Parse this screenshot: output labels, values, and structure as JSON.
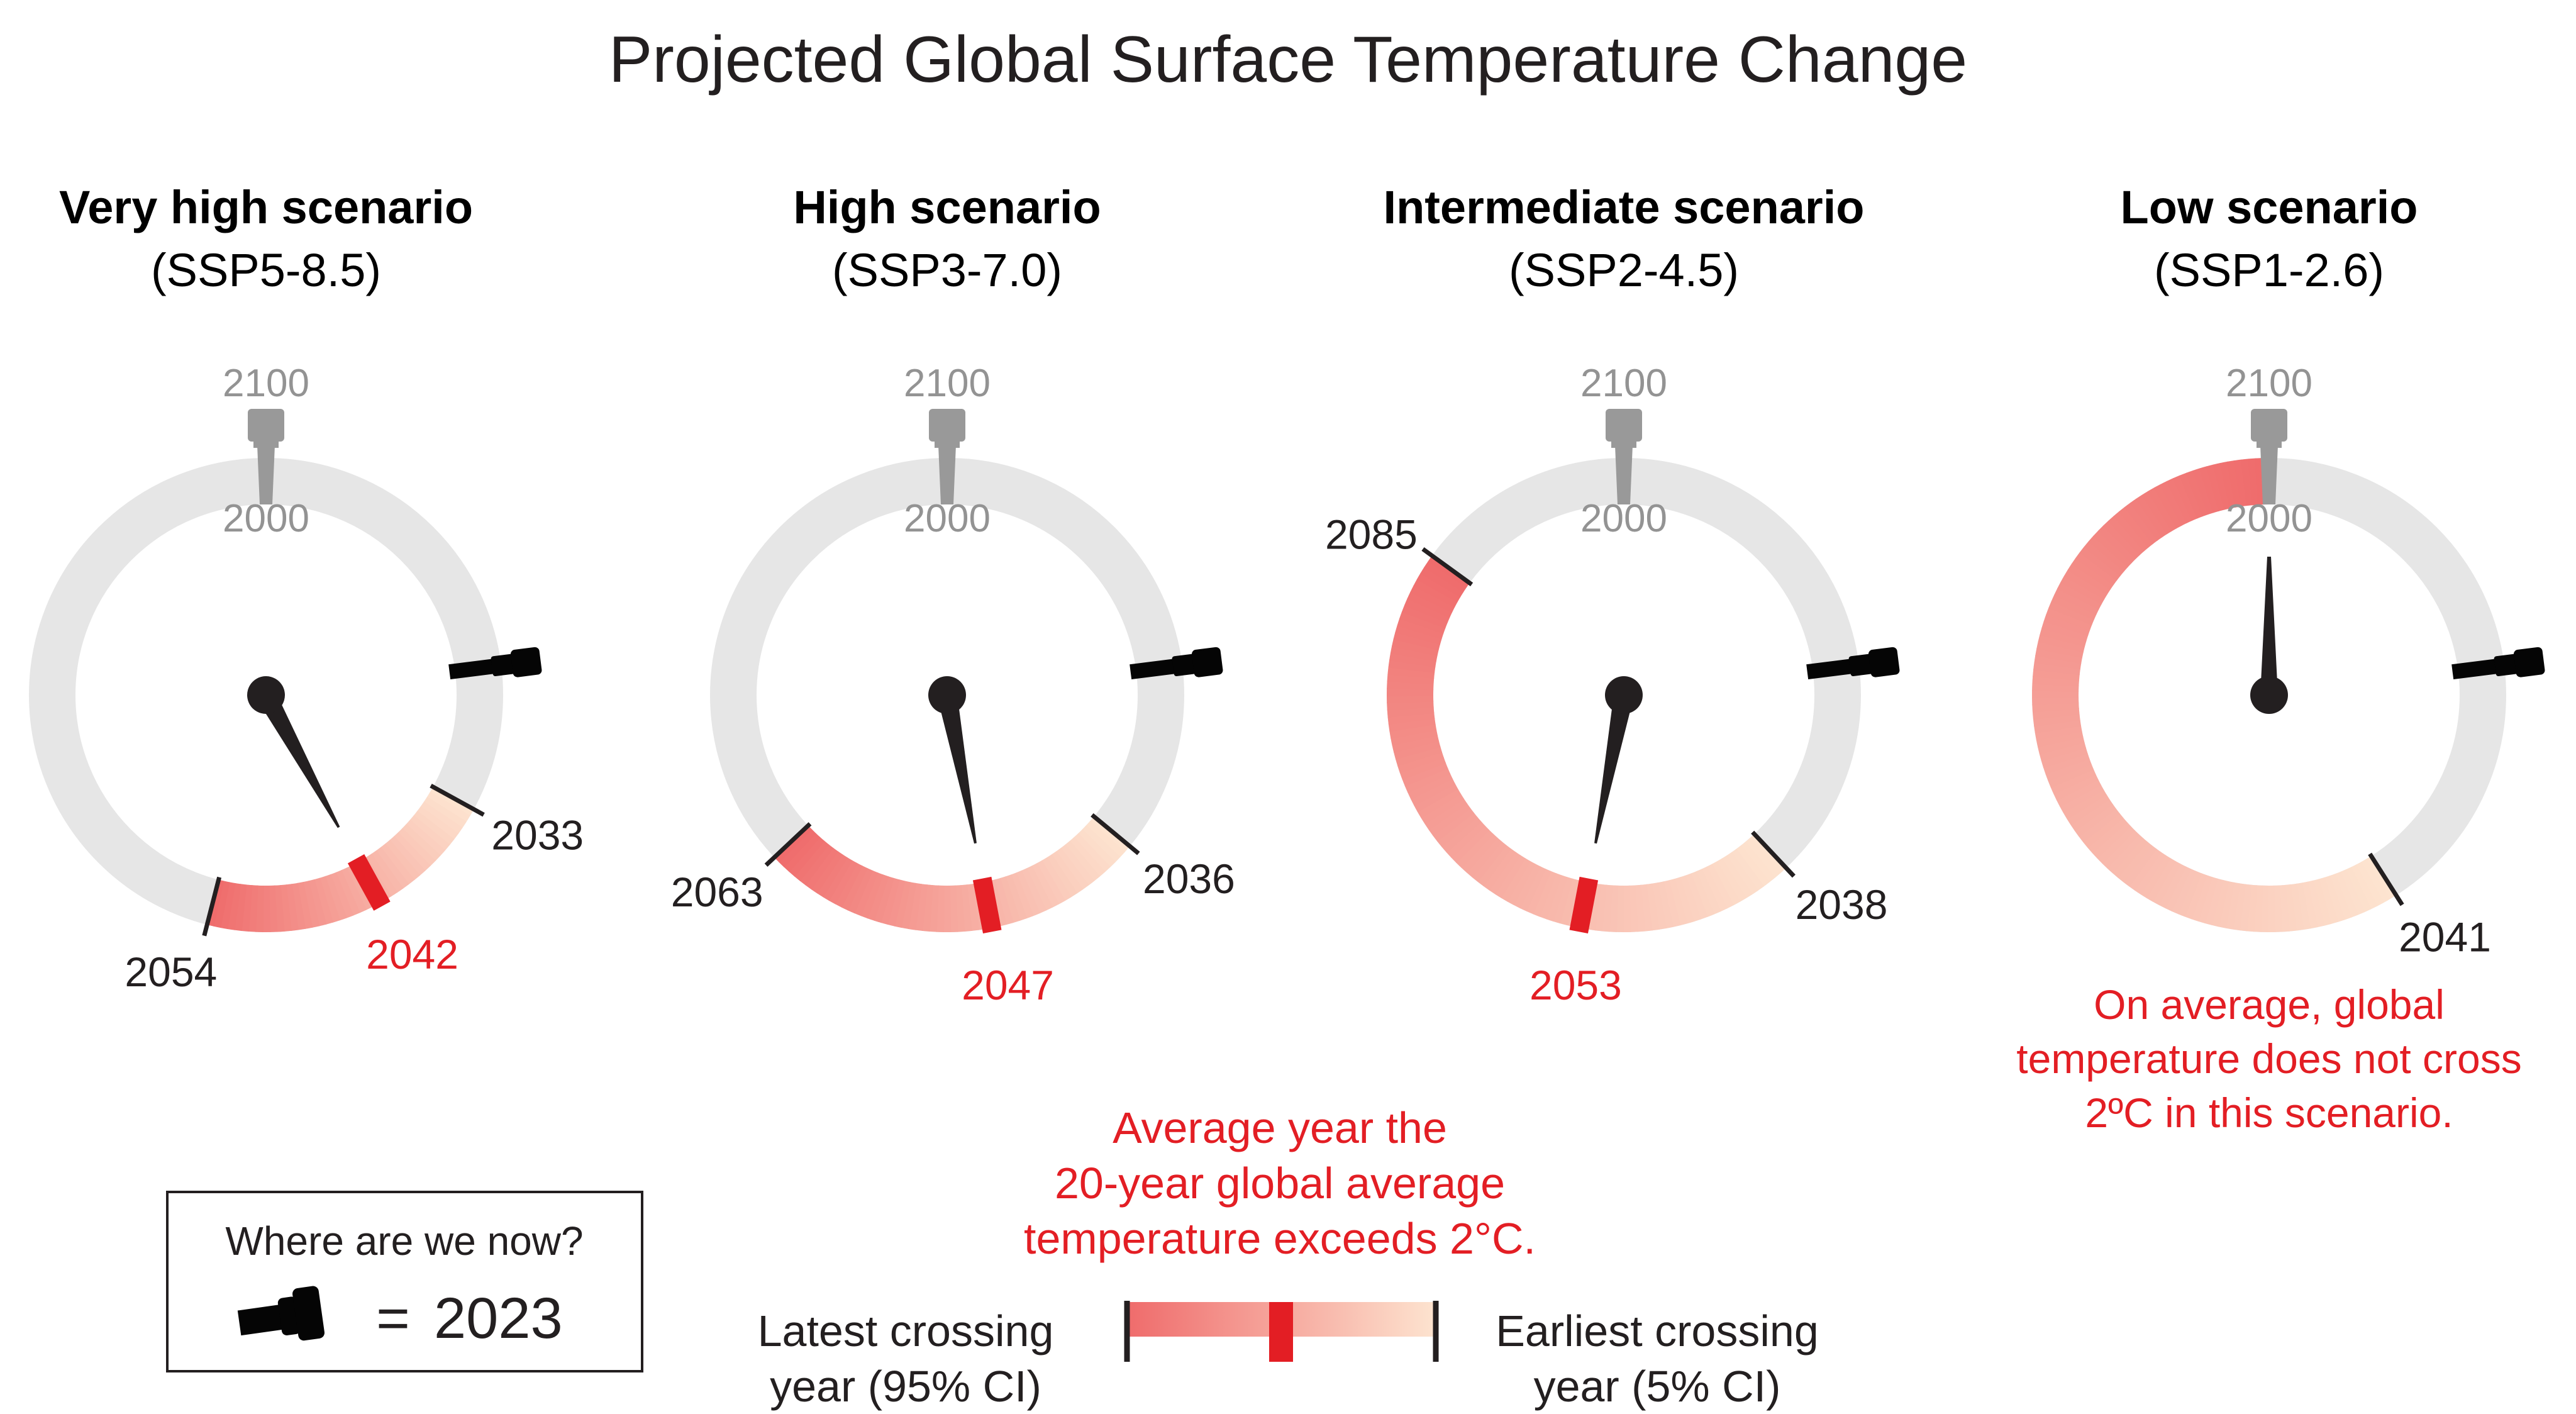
{
  "chart_data": {
    "type": "gauge",
    "title": "Projected Global Surface Temperature Change",
    "dial": {
      "start_year": 2000,
      "end_year": 2100,
      "start_label": "2000",
      "end_label": "2100",
      "direction": "clockwise",
      "current_year": 2023
    },
    "scenarios": [
      {
        "name": "Very high scenario",
        "code": "(SSP5-8.5)",
        "earliest": 2033,
        "mean": 2042,
        "latest": 2054,
        "earliest_label": "2033",
        "mean_label": "2042",
        "latest_label": "2054",
        "crosses": true
      },
      {
        "name": "High scenario",
        "code": "(SSP3-7.0)",
        "earliest": 2036,
        "mean": 2047,
        "latest": 2063,
        "earliest_label": "2036",
        "mean_label": "2047",
        "latest_label": "2063",
        "crosses": true
      },
      {
        "name": "Intermediate scenario",
        "code": "(SSP2-4.5)",
        "earliest": 2038,
        "mean": 2053,
        "latest": 2085,
        "earliest_label": "2038",
        "mean_label": "2053",
        "latest_label": "2085",
        "crosses": true
      },
      {
        "name": "Low scenario",
        "code": "(SSP1-2.6)",
        "earliest": 2041,
        "mean": null,
        "latest": 2100,
        "earliest_label": "2041",
        "mean_label": "",
        "latest_label": "",
        "crosses": false,
        "note_lines": [
          "On average, global",
          "temperature does not cross",
          "2ºC in this scenario."
        ]
      }
    ],
    "colors": {
      "track": "#e6e6e6",
      "gradient_earliest": "#fde4d0",
      "gradient_latest": "#ef6b6b",
      "mean_tick": "#e31e24",
      "needle": "#231f20",
      "crown": "#999999",
      "now_marker": "#050505"
    }
  },
  "legend": {
    "now_box": {
      "title": "Where are we now?",
      "equals": "=",
      "year": "2023"
    },
    "mean_caption_lines": [
      "Average year the",
      "20-year global average",
      "temperature exceeds 2°C."
    ],
    "latest_lines": [
      "Latest crossing",
      "year (95% CI)"
    ],
    "earliest_lines": [
      "Earliest crossing",
      "year (5% CI)"
    ]
  }
}
